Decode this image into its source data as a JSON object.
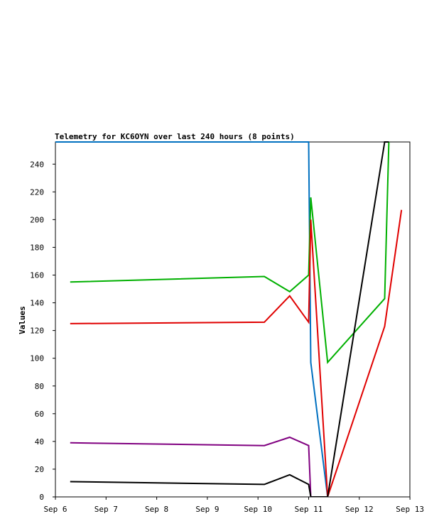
{
  "chart_data": {
    "type": "line",
    "title": "Telemetry for KC6OYN over last 240 hours (8 points)",
    "ylabel": "Values",
    "xlabel": "",
    "x_ticks": [
      "Sep 6",
      "Sep 7",
      "Sep 8",
      "Sep 9",
      "Sep 10",
      "Sep 11",
      "Sep 12",
      "Sep 13"
    ],
    "xlim": [
      "Sep 6",
      "Sep 13"
    ],
    "y_ticks": [
      0,
      20,
      40,
      60,
      80,
      100,
      120,
      140,
      160,
      180,
      200,
      220,
      240
    ],
    "ylim": [
      0,
      256
    ],
    "grid": false,
    "series": [
      {
        "color": "#0070c0",
        "points": [
          [
            "Sep 6",
            256
          ],
          [
            "Sep 11 00:00",
            256
          ],
          [
            "Sep 11 01:00",
            97
          ],
          [
            "Sep 11 09:00",
            0
          ]
        ]
      },
      {
        "color": "#00b000",
        "points": [
          [
            "Sep 6 07:00",
            155
          ],
          [
            "Sep 10 03:00",
            159
          ],
          [
            "Sep 10 15:00",
            148
          ],
          [
            "Sep 11 00:00",
            160
          ],
          [
            "Sep 11 01:00",
            216
          ],
          [
            "Sep 11 09:00",
            97
          ],
          [
            "Sep 12 12:00",
            143
          ],
          [
            "Sep 12 14:00",
            256
          ]
        ]
      },
      {
        "color": "#e00000",
        "points": [
          [
            "Sep 6 07:00",
            125
          ],
          [
            "Sep 10 03:00",
            126
          ],
          [
            "Sep 10 15:00",
            145
          ],
          [
            "Sep 11 00:00",
            126
          ],
          [
            "Sep 11 01:00",
            200
          ],
          [
            "Sep 11 09:00",
            0
          ],
          [
            "Sep 12 12:00",
            123
          ],
          [
            "Sep 12 20:00",
            207
          ]
        ]
      },
      {
        "color": "#800080",
        "points": [
          [
            "Sep 6 07:00",
            39
          ],
          [
            "Sep 10 03:00",
            37
          ],
          [
            "Sep 10 15:00",
            43
          ],
          [
            "Sep 11 00:00",
            37
          ],
          [
            "Sep 11 01:00",
            0
          ],
          [
            "Sep 11 09:00",
            0
          ]
        ]
      },
      {
        "color": "#000000",
        "points": [
          [
            "Sep 6 07:00",
            11
          ],
          [
            "Sep 10 03:00",
            9
          ],
          [
            "Sep 10 15:00",
            16
          ],
          [
            "Sep 11 00:00",
            9
          ],
          [
            "Sep 11 01:00",
            0
          ],
          [
            "Sep 11 09:00",
            0
          ],
          [
            "Sep 12 12:00",
            256
          ],
          [
            "Sep 12 14:00",
            256
          ]
        ]
      }
    ]
  }
}
